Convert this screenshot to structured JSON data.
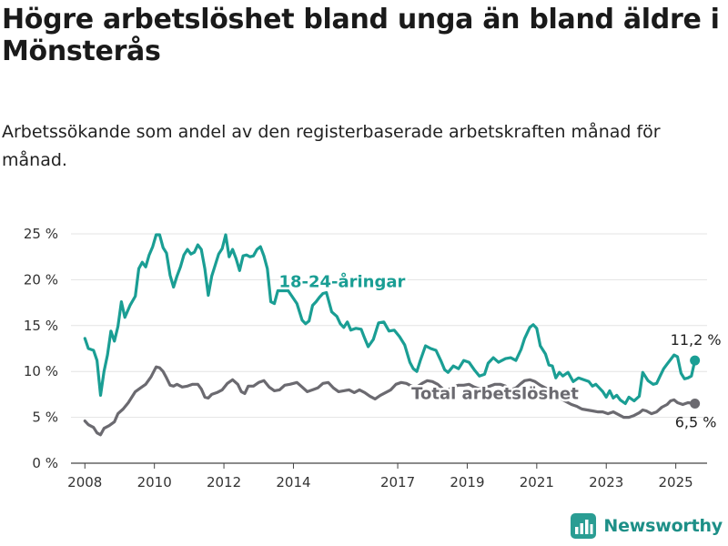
{
  "title": "Högre arbetslöshet bland unga än bland äldre i Mönsterås",
  "subtitle": "Arbetssökande som andel av den registerbaserade arbetskraften månad för månad.",
  "brand": "Newsworthy",
  "colors": {
    "youth": "#1a9e94",
    "total": "#6b6a70",
    "axis": "#444444",
    "grid": "#e3e3e3"
  },
  "chart_data": {
    "type": "line",
    "title": "Högre arbetslöshet bland unga än bland äldre i Mönsterås",
    "subtitle": "Arbetssökande som andel av den registerbaserade arbetskraften månad för månad.",
    "ylim": [
      0,
      25
    ],
    "xlim": [
      2007.6,
      2025.9
    ],
    "y_ticks": [
      0,
      5,
      10,
      15,
      20,
      25
    ],
    "y_tick_labels": [
      "0 %",
      "5 %",
      "10 %",
      "15 %",
      "20 %",
      "25 %"
    ],
    "x_ticks": [
      2008,
      2010,
      2012,
      2014,
      2017,
      2019,
      2021,
      2023,
      2025
    ],
    "x_tick_labels": [
      "2008",
      "2010",
      "2012",
      "2014",
      "2017",
      "2019",
      "2021",
      "2023",
      "2025"
    ],
    "series": [
      {
        "name": "18-24-åringar",
        "color": "#1a9e94",
        "end_label": "11,2 %",
        "points": [
          [
            2008.0,
            13.6
          ],
          [
            2008.1,
            12.5
          ],
          [
            2008.25,
            12.3
          ],
          [
            2008.35,
            11.2
          ],
          [
            2008.45,
            7.4
          ],
          [
            2008.55,
            10.0
          ],
          [
            2008.65,
            11.8
          ],
          [
            2008.75,
            14.4
          ],
          [
            2008.85,
            13.3
          ],
          [
            2008.95,
            14.9
          ],
          [
            2009.05,
            17.6
          ],
          [
            2009.15,
            15.9
          ],
          [
            2009.3,
            17.2
          ],
          [
            2009.45,
            18.2
          ],
          [
            2009.55,
            21.2
          ],
          [
            2009.65,
            21.9
          ],
          [
            2009.75,
            21.4
          ],
          [
            2009.85,
            22.7
          ],
          [
            2009.95,
            23.6
          ],
          [
            2010.05,
            24.9
          ],
          [
            2010.15,
            24.9
          ],
          [
            2010.25,
            23.5
          ],
          [
            2010.35,
            22.9
          ],
          [
            2010.45,
            20.5
          ],
          [
            2010.55,
            19.2
          ],
          [
            2010.65,
            20.4
          ],
          [
            2010.75,
            21.4
          ],
          [
            2010.85,
            22.7
          ],
          [
            2010.95,
            23.3
          ],
          [
            2011.05,
            22.8
          ],
          [
            2011.15,
            23.0
          ],
          [
            2011.25,
            23.8
          ],
          [
            2011.35,
            23.3
          ],
          [
            2011.45,
            21.2
          ],
          [
            2011.55,
            18.3
          ],
          [
            2011.65,
            20.4
          ],
          [
            2011.75,
            21.6
          ],
          [
            2011.85,
            22.8
          ],
          [
            2011.95,
            23.4
          ],
          [
            2012.05,
            24.9
          ],
          [
            2012.15,
            22.5
          ],
          [
            2012.25,
            23.3
          ],
          [
            2012.35,
            22.3
          ],
          [
            2012.45,
            21.0
          ],
          [
            2012.55,
            22.6
          ],
          [
            2012.65,
            22.7
          ],
          [
            2012.75,
            22.5
          ],
          [
            2012.85,
            22.6
          ],
          [
            2012.95,
            23.3
          ],
          [
            2013.05,
            23.6
          ],
          [
            2013.15,
            22.6
          ],
          [
            2013.25,
            21.2
          ],
          [
            2013.35,
            17.6
          ],
          [
            2013.45,
            17.4
          ],
          [
            2013.55,
            18.8
          ],
          [
            2013.85,
            18.8
          ],
          [
            2014.1,
            17.4
          ],
          [
            2014.25,
            15.6
          ],
          [
            2014.35,
            15.2
          ],
          [
            2014.45,
            15.5
          ],
          [
            2014.55,
            17.2
          ],
          [
            2014.65,
            17.6
          ],
          [
            2014.75,
            18.1
          ],
          [
            2014.85,
            18.5
          ],
          [
            2014.95,
            18.6
          ],
          [
            2015.1,
            16.5
          ],
          [
            2015.25,
            16.0
          ],
          [
            2015.35,
            15.2
          ],
          [
            2015.45,
            14.8
          ],
          [
            2015.55,
            15.4
          ],
          [
            2015.65,
            14.5
          ],
          [
            2015.8,
            14.7
          ],
          [
            2015.95,
            14.6
          ],
          [
            2016.05,
            13.6
          ],
          [
            2016.15,
            12.7
          ],
          [
            2016.3,
            13.5
          ],
          [
            2016.45,
            15.3
          ],
          [
            2016.6,
            15.4
          ],
          [
            2016.75,
            14.4
          ],
          [
            2016.9,
            14.5
          ],
          [
            2017.05,
            13.8
          ],
          [
            2017.2,
            12.9
          ],
          [
            2017.35,
            11.0
          ],
          [
            2017.45,
            10.3
          ],
          [
            2017.55,
            10.0
          ],
          [
            2017.65,
            11.2
          ],
          [
            2017.8,
            12.8
          ],
          [
            2017.95,
            12.5
          ],
          [
            2018.1,
            12.3
          ],
          [
            2018.25,
            11.1
          ],
          [
            2018.35,
            10.2
          ],
          [
            2018.45,
            9.9
          ],
          [
            2018.6,
            10.6
          ],
          [
            2018.75,
            10.3
          ],
          [
            2018.9,
            11.2
          ],
          [
            2019.05,
            11.0
          ],
          [
            2019.2,
            10.2
          ],
          [
            2019.35,
            9.5
          ],
          [
            2019.5,
            9.7
          ],
          [
            2019.6,
            10.9
          ],
          [
            2019.75,
            11.5
          ],
          [
            2019.9,
            11.0
          ],
          [
            2020.1,
            11.4
          ],
          [
            2020.25,
            11.5
          ],
          [
            2020.4,
            11.2
          ],
          [
            2020.55,
            12.4
          ],
          [
            2020.65,
            13.6
          ],
          [
            2020.8,
            14.8
          ],
          [
            2020.9,
            15.1
          ],
          [
            2021.0,
            14.7
          ],
          [
            2021.1,
            12.8
          ],
          [
            2021.25,
            11.9
          ],
          [
            2021.35,
            10.7
          ],
          [
            2021.45,
            10.6
          ],
          [
            2021.55,
            9.3
          ],
          [
            2021.65,
            9.9
          ],
          [
            2021.75,
            9.5
          ],
          [
            2021.9,
            9.9
          ],
          [
            2022.05,
            8.9
          ],
          [
            2022.2,
            9.3
          ],
          [
            2022.35,
            9.1
          ],
          [
            2022.5,
            8.9
          ],
          [
            2022.6,
            8.4
          ],
          [
            2022.7,
            8.6
          ],
          [
            2022.8,
            8.2
          ],
          [
            2022.9,
            7.8
          ],
          [
            2023.0,
            7.2
          ],
          [
            2023.1,
            7.9
          ],
          [
            2023.2,
            7.1
          ],
          [
            2023.3,
            7.4
          ],
          [
            2023.4,
            6.9
          ],
          [
            2023.55,
            6.5
          ],
          [
            2023.65,
            7.2
          ],
          [
            2023.8,
            6.8
          ],
          [
            2023.95,
            7.3
          ],
          [
            2024.05,
            9.9
          ],
          [
            2024.2,
            9.0
          ],
          [
            2024.35,
            8.6
          ],
          [
            2024.45,
            8.7
          ],
          [
            2024.55,
            9.5
          ],
          [
            2024.65,
            10.3
          ],
          [
            2024.75,
            10.8
          ],
          [
            2024.85,
            11.3
          ],
          [
            2024.95,
            11.8
          ],
          [
            2025.05,
            11.6
          ],
          [
            2025.15,
            9.8
          ],
          [
            2025.25,
            9.2
          ],
          [
            2025.35,
            9.3
          ],
          [
            2025.45,
            9.5
          ],
          [
            2025.55,
            11.2
          ]
        ]
      },
      {
        "name": "Total arbetslöshet",
        "color": "#6b6a70",
        "end_label": "6,5 %",
        "points": [
          [
            2008.0,
            4.6
          ],
          [
            2008.1,
            4.2
          ],
          [
            2008.25,
            3.9
          ],
          [
            2008.35,
            3.3
          ],
          [
            2008.45,
            3.1
          ],
          [
            2008.55,
            3.8
          ],
          [
            2008.7,
            4.1
          ],
          [
            2008.85,
            4.5
          ],
          [
            2008.95,
            5.4
          ],
          [
            2009.1,
            5.9
          ],
          [
            2009.25,
            6.6
          ],
          [
            2009.45,
            7.8
          ],
          [
            2009.6,
            8.2
          ],
          [
            2009.75,
            8.6
          ],
          [
            2009.9,
            9.4
          ],
          [
            2010.05,
            10.5
          ],
          [
            2010.15,
            10.4
          ],
          [
            2010.25,
            10.0
          ],
          [
            2010.35,
            9.3
          ],
          [
            2010.45,
            8.5
          ],
          [
            2010.55,
            8.4
          ],
          [
            2010.65,
            8.6
          ],
          [
            2010.8,
            8.3
          ],
          [
            2010.95,
            8.4
          ],
          [
            2011.1,
            8.6
          ],
          [
            2011.25,
            8.6
          ],
          [
            2011.35,
            8.1
          ],
          [
            2011.45,
            7.2
          ],
          [
            2011.55,
            7.1
          ],
          [
            2011.65,
            7.5
          ],
          [
            2011.8,
            7.7
          ],
          [
            2011.95,
            8.0
          ],
          [
            2012.1,
            8.7
          ],
          [
            2012.25,
            9.1
          ],
          [
            2012.4,
            8.6
          ],
          [
            2012.5,
            7.8
          ],
          [
            2012.6,
            7.6
          ],
          [
            2012.7,
            8.4
          ],
          [
            2012.85,
            8.4
          ],
          [
            2013.0,
            8.8
          ],
          [
            2013.15,
            9.0
          ],
          [
            2013.3,
            8.3
          ],
          [
            2013.45,
            7.9
          ],
          [
            2013.6,
            8.0
          ],
          [
            2013.75,
            8.5
          ],
          [
            2013.9,
            8.6
          ],
          [
            2014.1,
            8.8
          ],
          [
            2014.25,
            8.3
          ],
          [
            2014.4,
            7.8
          ],
          [
            2014.55,
            8.0
          ],
          [
            2014.7,
            8.2
          ],
          [
            2014.85,
            8.7
          ],
          [
            2015.0,
            8.8
          ],
          [
            2015.15,
            8.2
          ],
          [
            2015.3,
            7.8
          ],
          [
            2015.45,
            7.9
          ],
          [
            2015.6,
            8.0
          ],
          [
            2015.75,
            7.7
          ],
          [
            2015.9,
            8.0
          ],
          [
            2016.05,
            7.7
          ],
          [
            2016.2,
            7.3
          ],
          [
            2016.35,
            7.0
          ],
          [
            2016.5,
            7.4
          ],
          [
            2016.65,
            7.7
          ],
          [
            2016.8,
            8.0
          ],
          [
            2016.95,
            8.6
          ],
          [
            2017.1,
            8.8
          ],
          [
            2017.25,
            8.7
          ],
          [
            2017.4,
            8.4
          ],
          [
            2017.55,
            8.3
          ],
          [
            2017.7,
            8.7
          ],
          [
            2017.85,
            9.0
          ],
          [
            2018.0,
            8.9
          ],
          [
            2018.15,
            8.6
          ],
          [
            2018.3,
            8.1
          ],
          [
            2018.45,
            8.0
          ],
          [
            2018.6,
            8.3
          ],
          [
            2018.75,
            8.5
          ],
          [
            2018.9,
            8.5
          ],
          [
            2019.05,
            8.6
          ],
          [
            2019.2,
            8.3
          ],
          [
            2019.35,
            8.1
          ],
          [
            2019.5,
            8.2
          ],
          [
            2019.65,
            8.4
          ],
          [
            2019.8,
            8.6
          ],
          [
            2019.95,
            8.6
          ],
          [
            2020.1,
            8.4
          ],
          [
            2020.25,
            8.0
          ],
          [
            2020.4,
            8.2
          ],
          [
            2020.55,
            8.7
          ],
          [
            2020.65,
            9.0
          ],
          [
            2020.8,
            9.1
          ],
          [
            2020.95,
            8.9
          ],
          [
            2021.1,
            8.5
          ],
          [
            2021.25,
            8.2
          ],
          [
            2021.4,
            7.9
          ],
          [
            2021.55,
            7.2
          ],
          [
            2021.7,
            7.0
          ],
          [
            2021.85,
            6.7
          ],
          [
            2022.0,
            6.4
          ],
          [
            2022.15,
            6.2
          ],
          [
            2022.3,
            5.9
          ],
          [
            2022.45,
            5.8
          ],
          [
            2022.6,
            5.7
          ],
          [
            2022.75,
            5.6
          ],
          [
            2022.9,
            5.6
          ],
          [
            2023.05,
            5.4
          ],
          [
            2023.2,
            5.6
          ],
          [
            2023.35,
            5.3
          ],
          [
            2023.5,
            5.0
          ],
          [
            2023.65,
            5.0
          ],
          [
            2023.8,
            5.2
          ],
          [
            2023.95,
            5.5
          ],
          [
            2024.05,
            5.8
          ],
          [
            2024.15,
            5.7
          ],
          [
            2024.3,
            5.4
          ],
          [
            2024.45,
            5.6
          ],
          [
            2024.6,
            6.1
          ],
          [
            2024.75,
            6.4
          ],
          [
            2024.85,
            6.8
          ],
          [
            2024.95,
            6.9
          ],
          [
            2025.05,
            6.6
          ],
          [
            2025.2,
            6.4
          ],
          [
            2025.35,
            6.6
          ],
          [
            2025.55,
            6.5
          ]
        ]
      }
    ]
  }
}
